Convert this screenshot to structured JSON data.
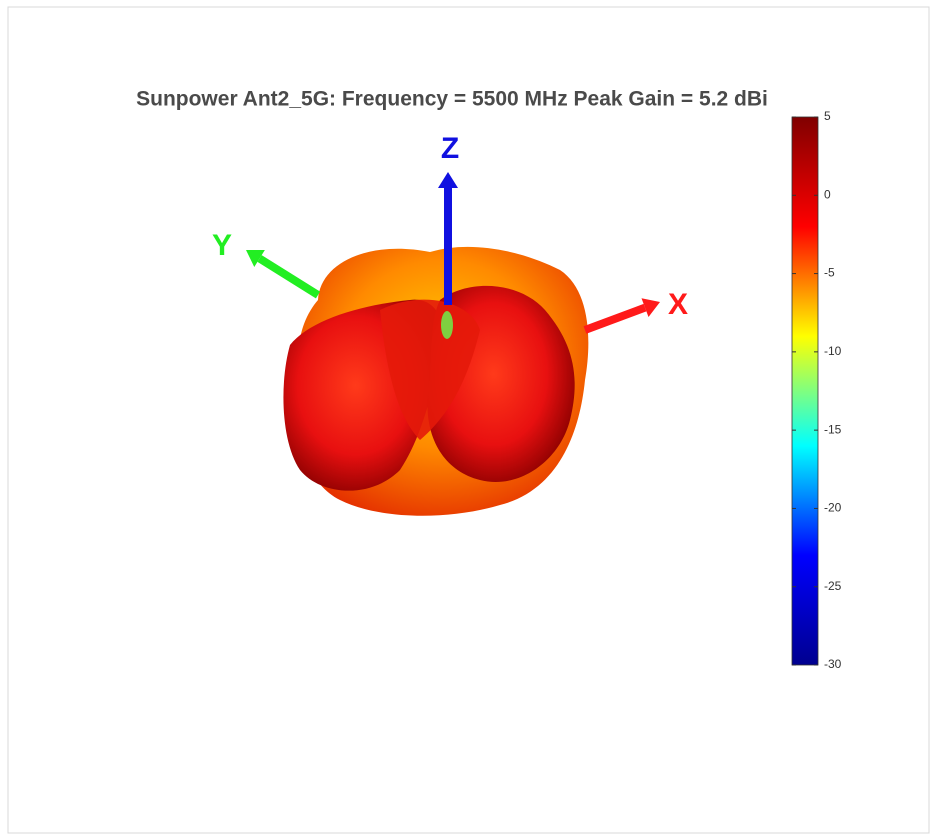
{
  "chart_data": {
    "type": "surface3d",
    "title": "Sunpower Ant2_5G: Frequency = 5500 MHz  Peak Gain = 5.2 dBi",
    "axis_labels": {
      "x": "X",
      "y": "Y",
      "z": "Z"
    },
    "axis_colors": {
      "x": "#ff1a1a",
      "y": "#22ee22",
      "z": "#1010e0"
    },
    "colormap": [
      "#00008f",
      "#0000ff",
      "#00ffff",
      "#ffff00",
      "#ff0000",
      "#800000"
    ],
    "clim": [
      -30,
      5
    ],
    "cticks": [
      5,
      0,
      -5,
      -10,
      -15,
      -20,
      -25,
      -30
    ]
  }
}
